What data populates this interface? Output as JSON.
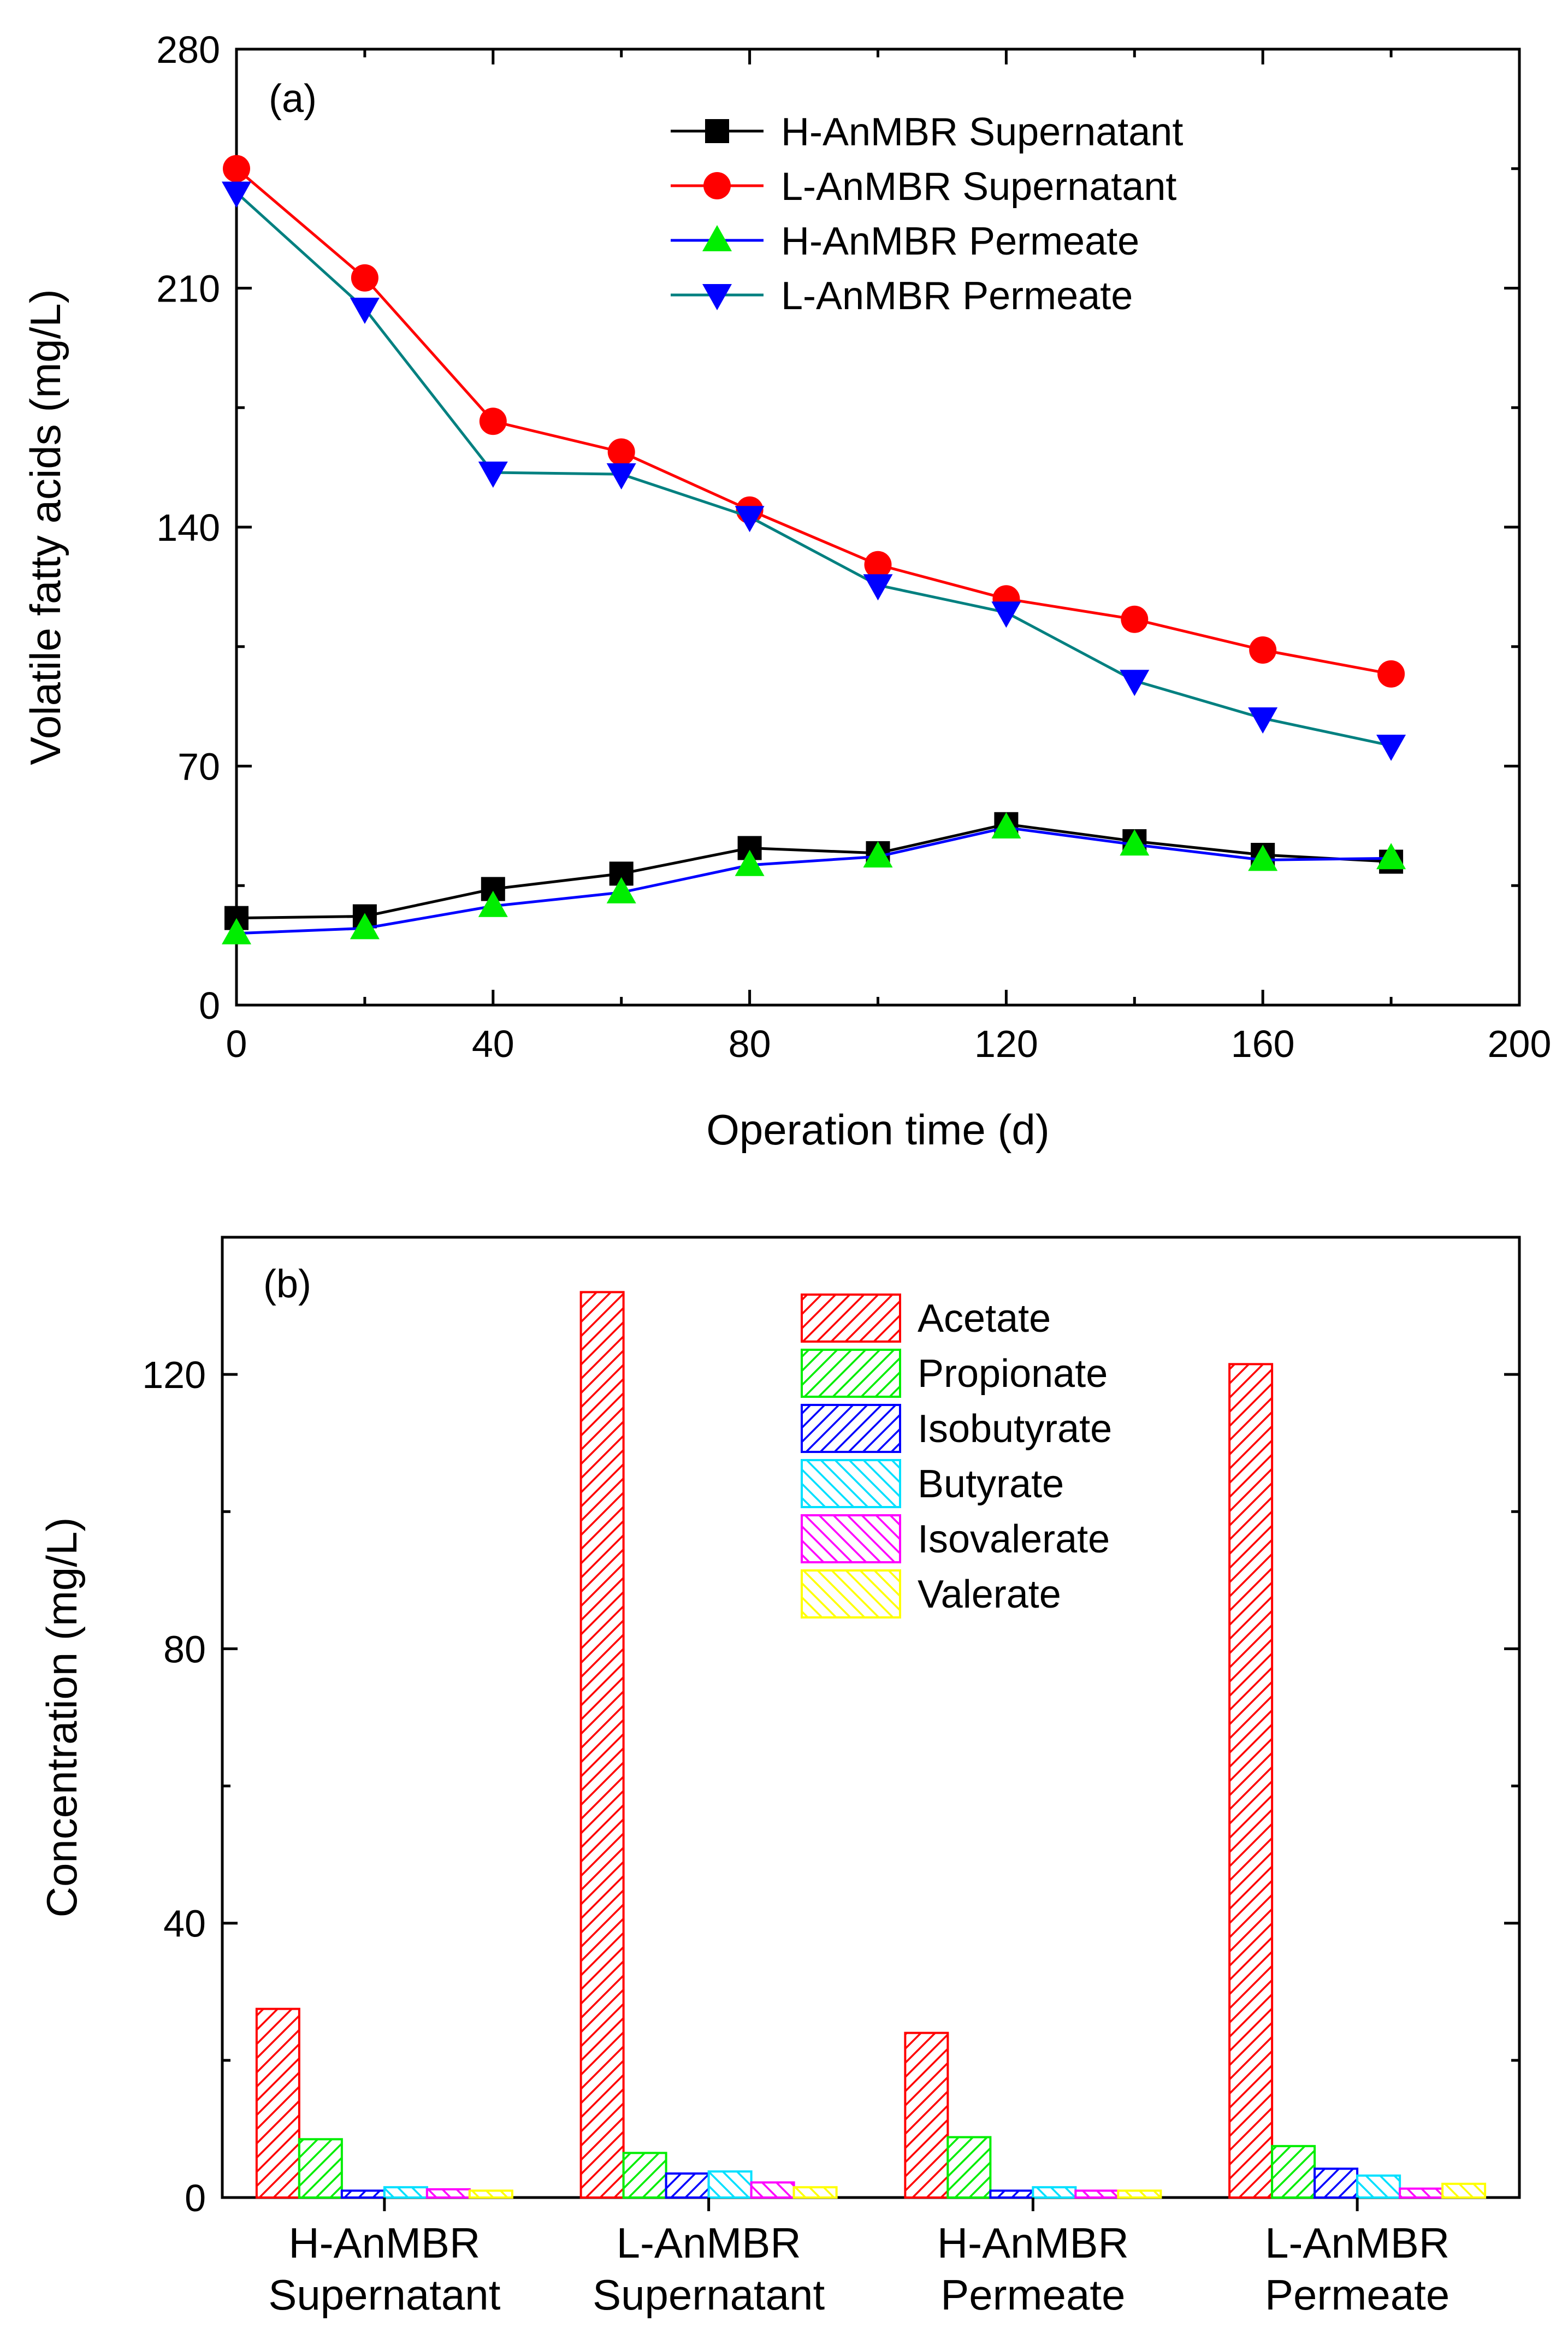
{
  "chart_data": [
    {
      "type": "line",
      "panel_label": "(a)",
      "xlabel": "Operation time (d)",
      "ylabel": "Volatile fatty acids (mg/L)",
      "xlim": [
        0,
        200
      ],
      "ylim": [
        0,
        280
      ],
      "xticks": [
        0,
        40,
        80,
        120,
        160,
        200
      ],
      "yticks": [
        0,
        70,
        140,
        210,
        280
      ],
      "legend_position": "top-center",
      "x": [
        0,
        20,
        40,
        60,
        80,
        100,
        120,
        140,
        160,
        180
      ],
      "series": [
        {
          "name": "H-AnMBR Supernatant",
          "line_color": "#000000",
          "marker_color": "#000000",
          "marker": "square",
          "values": [
            25.5,
            26,
            34,
            38.5,
            46,
            44.5,
            53,
            48,
            44,
            42
          ]
        },
        {
          "name": "L-AnMBR Supernatant",
          "line_color": "#ff0000",
          "marker_color": "#ff0000",
          "marker": "circle",
          "values": [
            245,
            213,
            171,
            162,
            145,
            129,
            119,
            113,
            104,
            97
          ]
        },
        {
          "name": "H-AnMBR Permeate",
          "line_color": "#0000ff",
          "marker_color": "#00ee00",
          "marker": "triangle-up",
          "values": [
            21,
            22.5,
            29,
            33,
            41,
            43.5,
            52,
            47,
            42.5,
            43
          ]
        },
        {
          "name": "L-AnMBR Permeate",
          "line_color": "#008080",
          "marker_color": "#0000ff",
          "marker": "triangle-down",
          "values": [
            238,
            204,
            156,
            155.5,
            143,
            123,
            115,
            95,
            84,
            76
          ]
        }
      ]
    },
    {
      "type": "bar",
      "panel_label": "(b)",
      "xlabel": "",
      "ylabel": "Concentration (mg/L)",
      "ylim": [
        0,
        140
      ],
      "yticks": [
        0,
        40,
        80,
        120
      ],
      "legend_position": "top-center",
      "categories": [
        [
          "H-AnMBR",
          "Supernatant"
        ],
        [
          "L-AnMBR",
          "Supernatant"
        ],
        [
          "H-AnMBR",
          "Permeate"
        ],
        [
          "L-AnMBR",
          "Permeate"
        ]
      ],
      "series": [
        {
          "name": "Acetate",
          "color": "#ff0000",
          "values": [
            27.5,
            132,
            24,
            121.5
          ]
        },
        {
          "name": "Propionate",
          "color": "#00ee00",
          "values": [
            8.5,
            6.5,
            8.8,
            7.5
          ]
        },
        {
          "name": "Isobutyrate",
          "color": "#0000ff",
          "values": [
            1.0,
            3.5,
            1.0,
            4.2
          ]
        },
        {
          "name": "Butyrate",
          "color": "#00e0ff",
          "values": [
            1.5,
            3.8,
            1.5,
            3.2
          ]
        },
        {
          "name": "Isovalerate",
          "color": "#ff00ff",
          "values": [
            1.2,
            2.2,
            1.0,
            1.3
          ]
        },
        {
          "name": "Valerate",
          "color": "#ffff00",
          "values": [
            1.0,
            1.5,
            1.0,
            2.0
          ]
        }
      ]
    }
  ]
}
